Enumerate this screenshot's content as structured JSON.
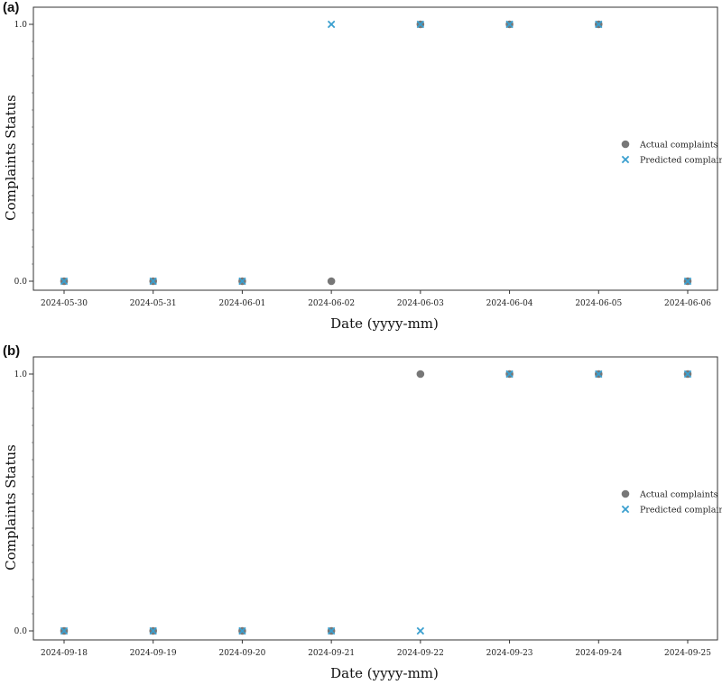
{
  "chart_data": [
    {
      "panel": "(a)",
      "type": "scatter",
      "categories": [
        "2024-05-30",
        "2024-05-31",
        "2024-06-01",
        "2024-06-02",
        "2024-06-03",
        "2024-06-04",
        "2024-06-05",
        "2024-06-06"
      ],
      "series": [
        {
          "name": "Actual complaints",
          "marker": "circle",
          "color": "#777777",
          "values": [
            0,
            0,
            0,
            0,
            1,
            1,
            1,
            0
          ]
        },
        {
          "name": "Predicted complaints",
          "marker": "x",
          "color": "#3a9fcf",
          "values": [
            0,
            0,
            0,
            1,
            1,
            1,
            1,
            0
          ]
        }
      ],
      "xlabel": "Date (yyyy-mm)",
      "ylabel": "Complaints Status",
      "yticks": [
        "0.0",
        "1.0"
      ],
      "ylim": [
        0,
        1
      ],
      "legend": "center-right"
    },
    {
      "panel": "(b)",
      "type": "scatter",
      "categories": [
        "2024-09-18",
        "2024-09-19",
        "2024-09-20",
        "2024-09-21",
        "2024-09-22",
        "2024-09-23",
        "2024-09-24",
        "2024-09-25"
      ],
      "series": [
        {
          "name": "Actual complaints",
          "marker": "circle",
          "color": "#777777",
          "values": [
            0,
            0,
            0,
            0,
            1,
            1,
            1,
            1
          ]
        },
        {
          "name": "Predicted complaints",
          "marker": "x",
          "color": "#3a9fcf",
          "values": [
            0,
            0,
            0,
            0,
            0,
            1,
            1,
            1
          ]
        }
      ],
      "xlabel": "Date (yyyy-mm)",
      "ylabel": "Complaints Status",
      "yticks": [
        "0.0",
        "1.0"
      ],
      "ylim": [
        0,
        1
      ],
      "legend": "center-right"
    }
  ]
}
